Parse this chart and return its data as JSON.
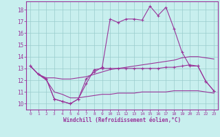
{
  "xlabel": "Windchill (Refroidissement éolien,°C)",
  "bg_color": "#c8efee",
  "line_color": "#993399",
  "grid_color": "#99cccc",
  "xlim": [
    -0.5,
    23.5
  ],
  "ylim": [
    9.5,
    18.7
  ],
  "xticks": [
    0,
    1,
    2,
    3,
    4,
    5,
    6,
    7,
    8,
    9,
    10,
    11,
    12,
    13,
    14,
    15,
    16,
    17,
    18,
    19,
    20,
    21,
    22,
    23
  ],
  "yticks": [
    10,
    11,
    12,
    13,
    14,
    15,
    16,
    17,
    18
  ],
  "series": [
    {
      "x": [
        0,
        1,
        2,
        3,
        4,
        5,
        6,
        7,
        8,
        9,
        10,
        11,
        12,
        13,
        14,
        15,
        16,
        17,
        18,
        19,
        20,
        21,
        22,
        23
      ],
      "y": [
        13.2,
        12.5,
        12.1,
        10.4,
        10.2,
        10.0,
        10.4,
        12.1,
        12.7,
        13.1,
        17.2,
        16.9,
        17.2,
        17.2,
        17.1,
        18.3,
        17.5,
        18.2,
        16.4,
        14.4,
        13.2,
        13.2,
        11.9,
        11.1
      ],
      "marker": true
    },
    {
      "x": [
        0,
        1,
        2,
        3,
        4,
        5,
        6,
        7,
        8,
        9,
        10,
        11,
        12,
        13,
        14,
        15,
        16,
        17,
        18,
        19,
        20,
        21,
        22,
        23
      ],
      "y": [
        13.2,
        12.5,
        12.1,
        10.4,
        10.2,
        10.0,
        10.4,
        11.7,
        12.9,
        13.0,
        13.0,
        13.0,
        13.0,
        13.0,
        13.0,
        13.0,
        13.0,
        13.1,
        13.1,
        13.2,
        13.3,
        13.2,
        11.9,
        11.1
      ],
      "marker": true
    },
    {
      "x": [
        0,
        1,
        2,
        3,
        4,
        5,
        6,
        7,
        8,
        9,
        10,
        11,
        12,
        13,
        14,
        15,
        16,
        17,
        18,
        19,
        20,
        21,
        22,
        23
      ],
      "y": [
        13.2,
        12.5,
        12.2,
        12.2,
        12.1,
        12.1,
        12.2,
        12.3,
        12.5,
        12.7,
        12.9,
        13.0,
        13.1,
        13.2,
        13.3,
        13.4,
        13.5,
        13.6,
        13.7,
        13.9,
        14.0,
        14.0,
        13.9,
        13.8
      ],
      "marker": false
    },
    {
      "x": [
        0,
        1,
        2,
        3,
        4,
        5,
        6,
        7,
        8,
        9,
        10,
        11,
        12,
        13,
        14,
        15,
        16,
        17,
        18,
        19,
        20,
        21,
        22,
        23
      ],
      "y": [
        13.2,
        12.5,
        12.0,
        11.0,
        10.8,
        10.5,
        10.5,
        10.6,
        10.7,
        10.8,
        10.8,
        10.9,
        10.9,
        10.9,
        11.0,
        11.0,
        11.0,
        11.0,
        11.1,
        11.1,
        11.1,
        11.1,
        11.0,
        10.9
      ],
      "marker": false
    }
  ]
}
